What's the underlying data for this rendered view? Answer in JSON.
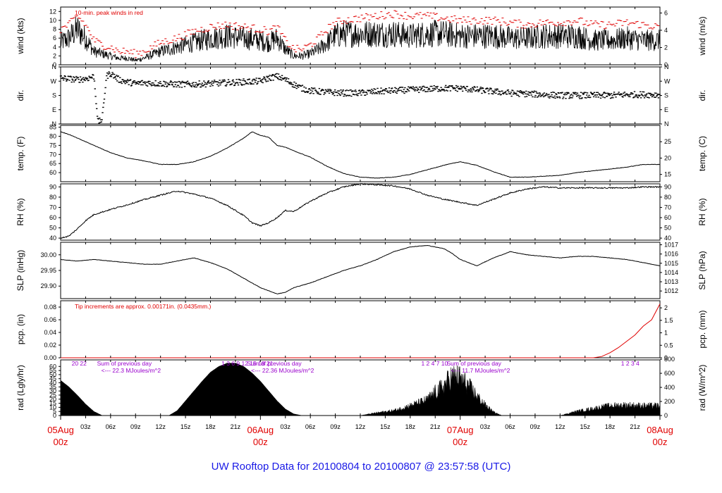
{
  "title": "UW Rooftop Data for 20100804  to  20100807 @ 23:57:58  (UTC)",
  "colors": {
    "axis": "#000000",
    "trace": "#000000",
    "peak": "#e00000",
    "precip": "#e00000",
    "purple": "#9900cc",
    "day": "#e00000",
    "title": "#1a1ae6"
  },
  "time": {
    "x_range_hours": [
      0,
      72
    ],
    "hour_ticks": [
      {
        "h": 3,
        "label": "03z"
      },
      {
        "h": 6,
        "label": "06z"
      },
      {
        "h": 9,
        "label": "09z"
      },
      {
        "h": 12,
        "label": "12z"
      },
      {
        "h": 15,
        "label": "15z"
      },
      {
        "h": 18,
        "label": "18z"
      },
      {
        "h": 21,
        "label": "21z"
      },
      {
        "h": 27,
        "label": "03z"
      },
      {
        "h": 30,
        "label": "06z"
      },
      {
        "h": 33,
        "label": "09z"
      },
      {
        "h": 36,
        "label": "12z"
      },
      {
        "h": 39,
        "label": "15z"
      },
      {
        "h": 42,
        "label": "18z"
      },
      {
        "h": 45,
        "label": "21z"
      },
      {
        "h": 51,
        "label": "03z"
      },
      {
        "h": 54,
        "label": "06z"
      },
      {
        "h": 57,
        "label": "09z"
      },
      {
        "h": 60,
        "label": "12z"
      },
      {
        "h": 63,
        "label": "15z"
      },
      {
        "h": 66,
        "label": "18z"
      },
      {
        "h": 69,
        "label": "21z"
      }
    ],
    "day_labels": [
      {
        "h": 0,
        "date": "05Aug",
        "hour": "00z"
      },
      {
        "h": 24,
        "date": "06Aug",
        "hour": "00z"
      },
      {
        "h": 48,
        "date": "07Aug",
        "hour": "00z"
      },
      {
        "h": 72,
        "date": "08Aug",
        "hour": "00z"
      }
    ]
  },
  "chart_data": [
    {
      "type": "line",
      "panel": "wind",
      "ylabel_left": "wind (kts)",
      "ylabel_right": "wind (m/s)",
      "ylim": [
        0,
        13
      ],
      "ticks_left": [
        0,
        2,
        4,
        6,
        8,
        10,
        12
      ],
      "ticks_right": [
        0,
        2,
        4,
        6
      ],
      "annotation": "10-min. peak winds in red",
      "series": [
        {
          "role": "wind",
          "x": [
            0,
            1,
            2,
            3,
            4,
            5,
            6,
            7,
            8,
            9,
            10,
            12,
            14,
            16,
            18,
            20,
            22,
            24,
            25,
            26,
            27,
            28,
            29,
            30,
            31,
            32,
            33,
            34,
            36,
            38,
            40,
            42,
            44,
            46,
            48,
            50,
            52,
            54,
            56,
            58,
            60,
            62,
            64,
            66,
            68,
            70,
            72
          ],
          "values": [
            5,
            6,
            8,
            6,
            3,
            2.5,
            2,
            1.5,
            1.5,
            1,
            1.5,
            3,
            4,
            5,
            6,
            6.5,
            6,
            5.5,
            5,
            6,
            3.5,
            2,
            2,
            2.5,
            3.5,
            5,
            6.5,
            7,
            7,
            7,
            7,
            6.5,
            7,
            7,
            6.5,
            6.5,
            6.5,
            6,
            6,
            6.5,
            6.5,
            6.5,
            5.5,
            5.5,
            6,
            5.5,
            5.5
          ]
        },
        {
          "role": "peak",
          "x": [
            0,
            1,
            2,
            3,
            4,
            5,
            6,
            7,
            8,
            9,
            10,
            12,
            14,
            16,
            18,
            20,
            22,
            24,
            25,
            26,
            27,
            28,
            29,
            30,
            31,
            32,
            33,
            34,
            36,
            38,
            40,
            42,
            44,
            46,
            48,
            50,
            52,
            54,
            56,
            58,
            60,
            62,
            64,
            66,
            68,
            70,
            72
          ],
          "values": [
            8,
            9,
            11,
            9,
            5.5,
            4.5,
            4,
            3,
            3,
            2.5,
            3,
            5,
            6,
            7.5,
            8.5,
            9,
            8.5,
            8,
            7.5,
            8.5,
            5.5,
            3.5,
            3.5,
            4.5,
            6,
            8,
            9.5,
            10,
            10.5,
            11,
            11.5,
            11,
            11,
            10.5,
            10,
            10,
            10,
            9.5,
            9,
            9.5,
            9.5,
            10,
            9,
            9,
            9.5,
            9,
            8.5
          ]
        }
      ]
    },
    {
      "type": "scatter",
      "panel": "dir",
      "ylabel_left": "dir.",
      "ylabel_right": "dir.",
      "ylim": [
        0,
        360
      ],
      "ticks_left": [
        "N",
        "E",
        "S",
        "W",
        "N"
      ],
      "ticks_right": [
        "N",
        "E",
        "S",
        "W",
        "N"
      ],
      "series": [
        {
          "role": "dir",
          "x": [
            0,
            1,
            2,
            3,
            4,
            4.5,
            5,
            5.5,
            6,
            7,
            8,
            9,
            10,
            12,
            14,
            16,
            18,
            20,
            22,
            24,
            25,
            26,
            27,
            28,
            29,
            30,
            32,
            34,
            36,
            38,
            40,
            42,
            44,
            46,
            48,
            50,
            52,
            54,
            56,
            58,
            60,
            62,
            64,
            66,
            68,
            70,
            72
          ],
          "values": [
            290,
            285,
            280,
            285,
            300,
            10,
            30,
            300,
            320,
            280,
            265,
            255,
            260,
            255,
            250,
            250,
            255,
            260,
            265,
            270,
            290,
            300,
            280,
            250,
            225,
            210,
            200,
            195,
            195,
            205,
            210,
            215,
            220,
            225,
            225,
            215,
            205,
            195,
            190,
            185,
            180,
            180,
            180,
            180,
            185,
            185,
            185
          ]
        }
      ]
    },
    {
      "type": "line",
      "panel": "temp",
      "ylabel_left": "temp. (F)",
      "ylabel_right": "temp. (C)",
      "ylim": [
        55,
        86
      ],
      "ticks_left": [
        60,
        65,
        70,
        75,
        80,
        85
      ],
      "ticks_right": [
        15,
        20,
        25
      ],
      "series": [
        {
          "role": "temp",
          "x": [
            0,
            1,
            2,
            3,
            4,
            6,
            8,
            10,
            12,
            14,
            16,
            18,
            20,
            22,
            23,
            24,
            25,
            26,
            27,
            28,
            30,
            32,
            34,
            36,
            38,
            40,
            42,
            44,
            46,
            48,
            50,
            52,
            54,
            56,
            58,
            60,
            62,
            64,
            66,
            68,
            70,
            72
          ],
          "values": [
            82.5,
            81,
            79,
            77,
            75,
            71,
            68,
            66.5,
            64.5,
            64.5,
            66,
            69,
            73.5,
            79,
            82.5,
            80.5,
            79.5,
            75,
            74,
            72,
            68.5,
            63.5,
            59.5,
            57.5,
            57,
            57.5,
            59,
            61.5,
            64,
            66,
            64,
            60.5,
            57.5,
            57.5,
            58,
            58.5,
            60,
            61,
            62,
            63,
            64.5,
            64.5
          ]
        }
      ]
    },
    {
      "type": "line",
      "panel": "rh",
      "ylabel_left": "RH (%)",
      "ylabel_right": "RH (%)",
      "ylim": [
        38,
        93
      ],
      "ticks_left": [
        40,
        50,
        60,
        70,
        80,
        90
      ],
      "ticks_right": [
        40,
        50,
        60,
        70,
        80,
        90
      ],
      "series": [
        {
          "role": "rh",
          "x": [
            0,
            1,
            2,
            3,
            4,
            6,
            8,
            10,
            12,
            14,
            16,
            18,
            20,
            22,
            23,
            24,
            25,
            26,
            27,
            28,
            30,
            32,
            34,
            36,
            38,
            40,
            42,
            44,
            46,
            48,
            50,
            52,
            54,
            56,
            58,
            60,
            62,
            64,
            66,
            68,
            70,
            72
          ],
          "values": [
            40,
            42,
            49,
            57,
            63,
            68,
            72.5,
            77.5,
            82,
            86,
            83,
            79,
            72,
            62,
            55,
            52,
            55,
            60,
            67,
            66,
            76,
            84,
            90,
            93,
            92,
            91,
            88,
            82,
            78,
            75,
            72,
            78,
            84,
            88,
            90,
            89,
            89,
            89,
            89,
            89,
            90,
            90
          ]
        }
      ]
    },
    {
      "type": "line",
      "panel": "slp",
      "ylabel_left": "SLP (inHg)",
      "ylabel_right": "SLP (hPa)",
      "ylim": [
        29.86,
        30.04
      ],
      "ticks_left": [
        29.9,
        29.95,
        30.0
      ],
      "ticks_right": [
        1012,
        1013,
        1014,
        1015,
        1016,
        1017
      ],
      "series": [
        {
          "role": "slp",
          "x": [
            0,
            2,
            4,
            6,
            8,
            10,
            12,
            14,
            16,
            18,
            20,
            22,
            24,
            26,
            27,
            28,
            30,
            32,
            34,
            36,
            38,
            40,
            42,
            44,
            46,
            47,
            48,
            50,
            52,
            54,
            56,
            58,
            60,
            62,
            64,
            66,
            68,
            70,
            72
          ],
          "values": [
            29.985,
            29.98,
            29.985,
            29.98,
            29.975,
            29.97,
            29.97,
            29.98,
            29.99,
            29.975,
            29.955,
            29.925,
            29.895,
            29.875,
            29.88,
            29.895,
            29.91,
            29.93,
            29.95,
            29.965,
            29.985,
            30.01,
            30.025,
            30.03,
            30.02,
            30.005,
            29.985,
            29.965,
            29.99,
            30.01,
            30.0,
            29.995,
            29.99,
            29.995,
            29.995,
            29.99,
            29.985,
            29.975,
            29.965
          ]
        }
      ]
    },
    {
      "type": "line",
      "panel": "pcp",
      "ylabel_left": "pcp. (in)",
      "ylabel_right": "pcp. (mm)",
      "ylim": [
        0,
        0.09
      ],
      "ticks_left": [
        0.0,
        0.02,
        0.04,
        0.06,
        0.08
      ],
      "ticks_right": [
        0,
        0.5,
        1,
        1.5,
        2
      ],
      "annotation": "Tip increments are approx. 0.00171in. (0.0435mm.)",
      "series": [
        {
          "role": "pcp",
          "x": [
            0,
            64,
            65,
            66,
            67,
            68,
            69,
            70,
            71,
            72
          ],
          "values": [
            0,
            0,
            0.002,
            0.008,
            0.016,
            0.026,
            0.036,
            0.05,
            0.06,
            0.085
          ]
        }
      ]
    },
    {
      "type": "area",
      "panel": "rad",
      "ylabel_left": "rad (Lgly/hr)",
      "ylabel_right": "rad (W/m^2)",
      "ylim": [
        0,
        68
      ],
      "ticks_left": [
        0,
        5,
        10,
        15,
        20,
        25,
        30,
        35,
        40,
        45,
        50,
        55,
        60
      ],
      "ticks_right": [
        0,
        200,
        400,
        600,
        800
      ],
      "series": [
        {
          "role": "rad",
          "x": [
            0,
            1,
            2,
            3,
            4,
            5,
            13,
            14,
            15,
            16,
            17,
            18,
            19,
            20,
            21,
            22,
            23,
            24,
            25,
            26,
            27,
            28,
            29,
            36,
            38,
            40,
            42,
            44,
            45,
            46,
            47,
            48,
            49,
            50,
            51,
            52,
            53,
            60,
            62,
            64,
            66,
            68,
            70,
            72
          ],
          "values": [
            43,
            35,
            25,
            14,
            5,
            0,
            0,
            6,
            18,
            30,
            42,
            53,
            60,
            64,
            64,
            60,
            52,
            42,
            30,
            18,
            8,
            2,
            0,
            0,
            4,
            7,
            14,
            22,
            33,
            42,
            56,
            54,
            42,
            28,
            15,
            5,
            0,
            0,
            6,
            10,
            14,
            15,
            14,
            14
          ]
        }
      ],
      "day_sums": [
        {
          "hours_text": "20  22",
          "hours_at": 2,
          "text": "Sum of previous day",
          "value": "<--- 22.3 MJoules/m^2"
        },
        {
          "hours_text": "1   3   6   9  12  15   18   21",
          "hours_at": 20,
          "text": "Sum of previous day",
          "value": "<--- 22.36 MJoules/m^2"
        },
        {
          "hours_text": "1    2     4   7    10",
          "hours_at": 44,
          "text": "Sum of previous day",
          "value": "<--- 11.7 MJoules/m^2"
        },
        {
          "hours_text": "1        2      3     4",
          "hours_at": 68,
          "text": "",
          "value": ""
        }
      ]
    }
  ]
}
